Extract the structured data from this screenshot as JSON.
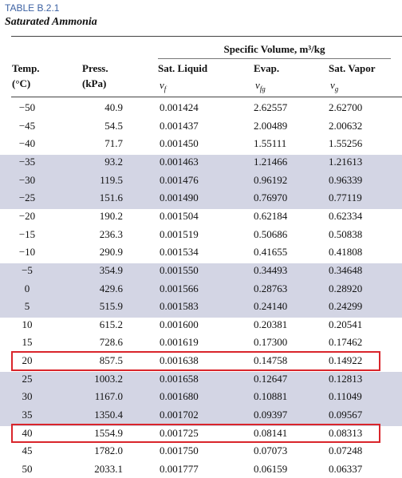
{
  "header": {
    "table_id": "TABLE B.2.1",
    "title": "Saturated Ammonia"
  },
  "table": {
    "group_header": "Specific Volume, m³/kg",
    "columns": [
      {
        "name": "Temp.",
        "unit": "(°C)"
      },
      {
        "name": "Press.",
        "unit": "(kPa)"
      },
      {
        "name": "Sat. Liquid",
        "symbol": "v",
        "subscript": "f"
      },
      {
        "name": "Evap.",
        "symbol": "v",
        "subscript": "fg"
      },
      {
        "name": "Sat. Vapor",
        "symbol": "v",
        "subscript": "g"
      }
    ],
    "rows": [
      [
        "−50",
        "40.9",
        "0.001424",
        "2.62557",
        "2.62700"
      ],
      [
        "−45",
        "54.5",
        "0.001437",
        "2.00489",
        "2.00632"
      ],
      [
        "−40",
        "71.7",
        "0.001450",
        "1.55111",
        "1.55256"
      ],
      [
        "−35",
        "93.2",
        "0.001463",
        "1.21466",
        "1.21613"
      ],
      [
        "−30",
        "119.5",
        "0.001476",
        "0.96192",
        "0.96339"
      ],
      [
        "−25",
        "151.6",
        "0.001490",
        "0.76970",
        "0.77119"
      ],
      [
        "−20",
        "190.2",
        "0.001504",
        "0.62184",
        "0.62334"
      ],
      [
        "−15",
        "236.3",
        "0.001519",
        "0.50686",
        "0.50838"
      ],
      [
        "−10",
        "290.9",
        "0.001534",
        "0.41655",
        "0.41808"
      ],
      [
        "−5",
        "354.9",
        "0.001550",
        "0.34493",
        "0.34648"
      ],
      [
        "0",
        "429.6",
        "0.001566",
        "0.28763",
        "0.28920"
      ],
      [
        "5",
        "515.9",
        "0.001583",
        "0.24140",
        "0.24299"
      ],
      [
        "10",
        "615.2",
        "0.001600",
        "0.20381",
        "0.20541"
      ],
      [
        "15",
        "728.6",
        "0.001619",
        "0.17300",
        "0.17462"
      ],
      [
        "20",
        "857.5",
        "0.001638",
        "0.14758",
        "0.14922"
      ],
      [
        "25",
        "1003.2",
        "0.001658",
        "0.12647",
        "0.12813"
      ],
      [
        "30",
        "1167.0",
        "0.001680",
        "0.10881",
        "0.11049"
      ],
      [
        "35",
        "1350.4",
        "0.001702",
        "0.09397",
        "0.09567"
      ],
      [
        "40",
        "1554.9",
        "0.001725",
        "0.08141",
        "0.08313"
      ],
      [
        "45",
        "1782.0",
        "0.001750",
        "0.07073",
        "0.07248"
      ],
      [
        "50",
        "2033.1",
        "0.001777",
        "0.06159",
        "0.06337"
      ]
    ]
  }
}
